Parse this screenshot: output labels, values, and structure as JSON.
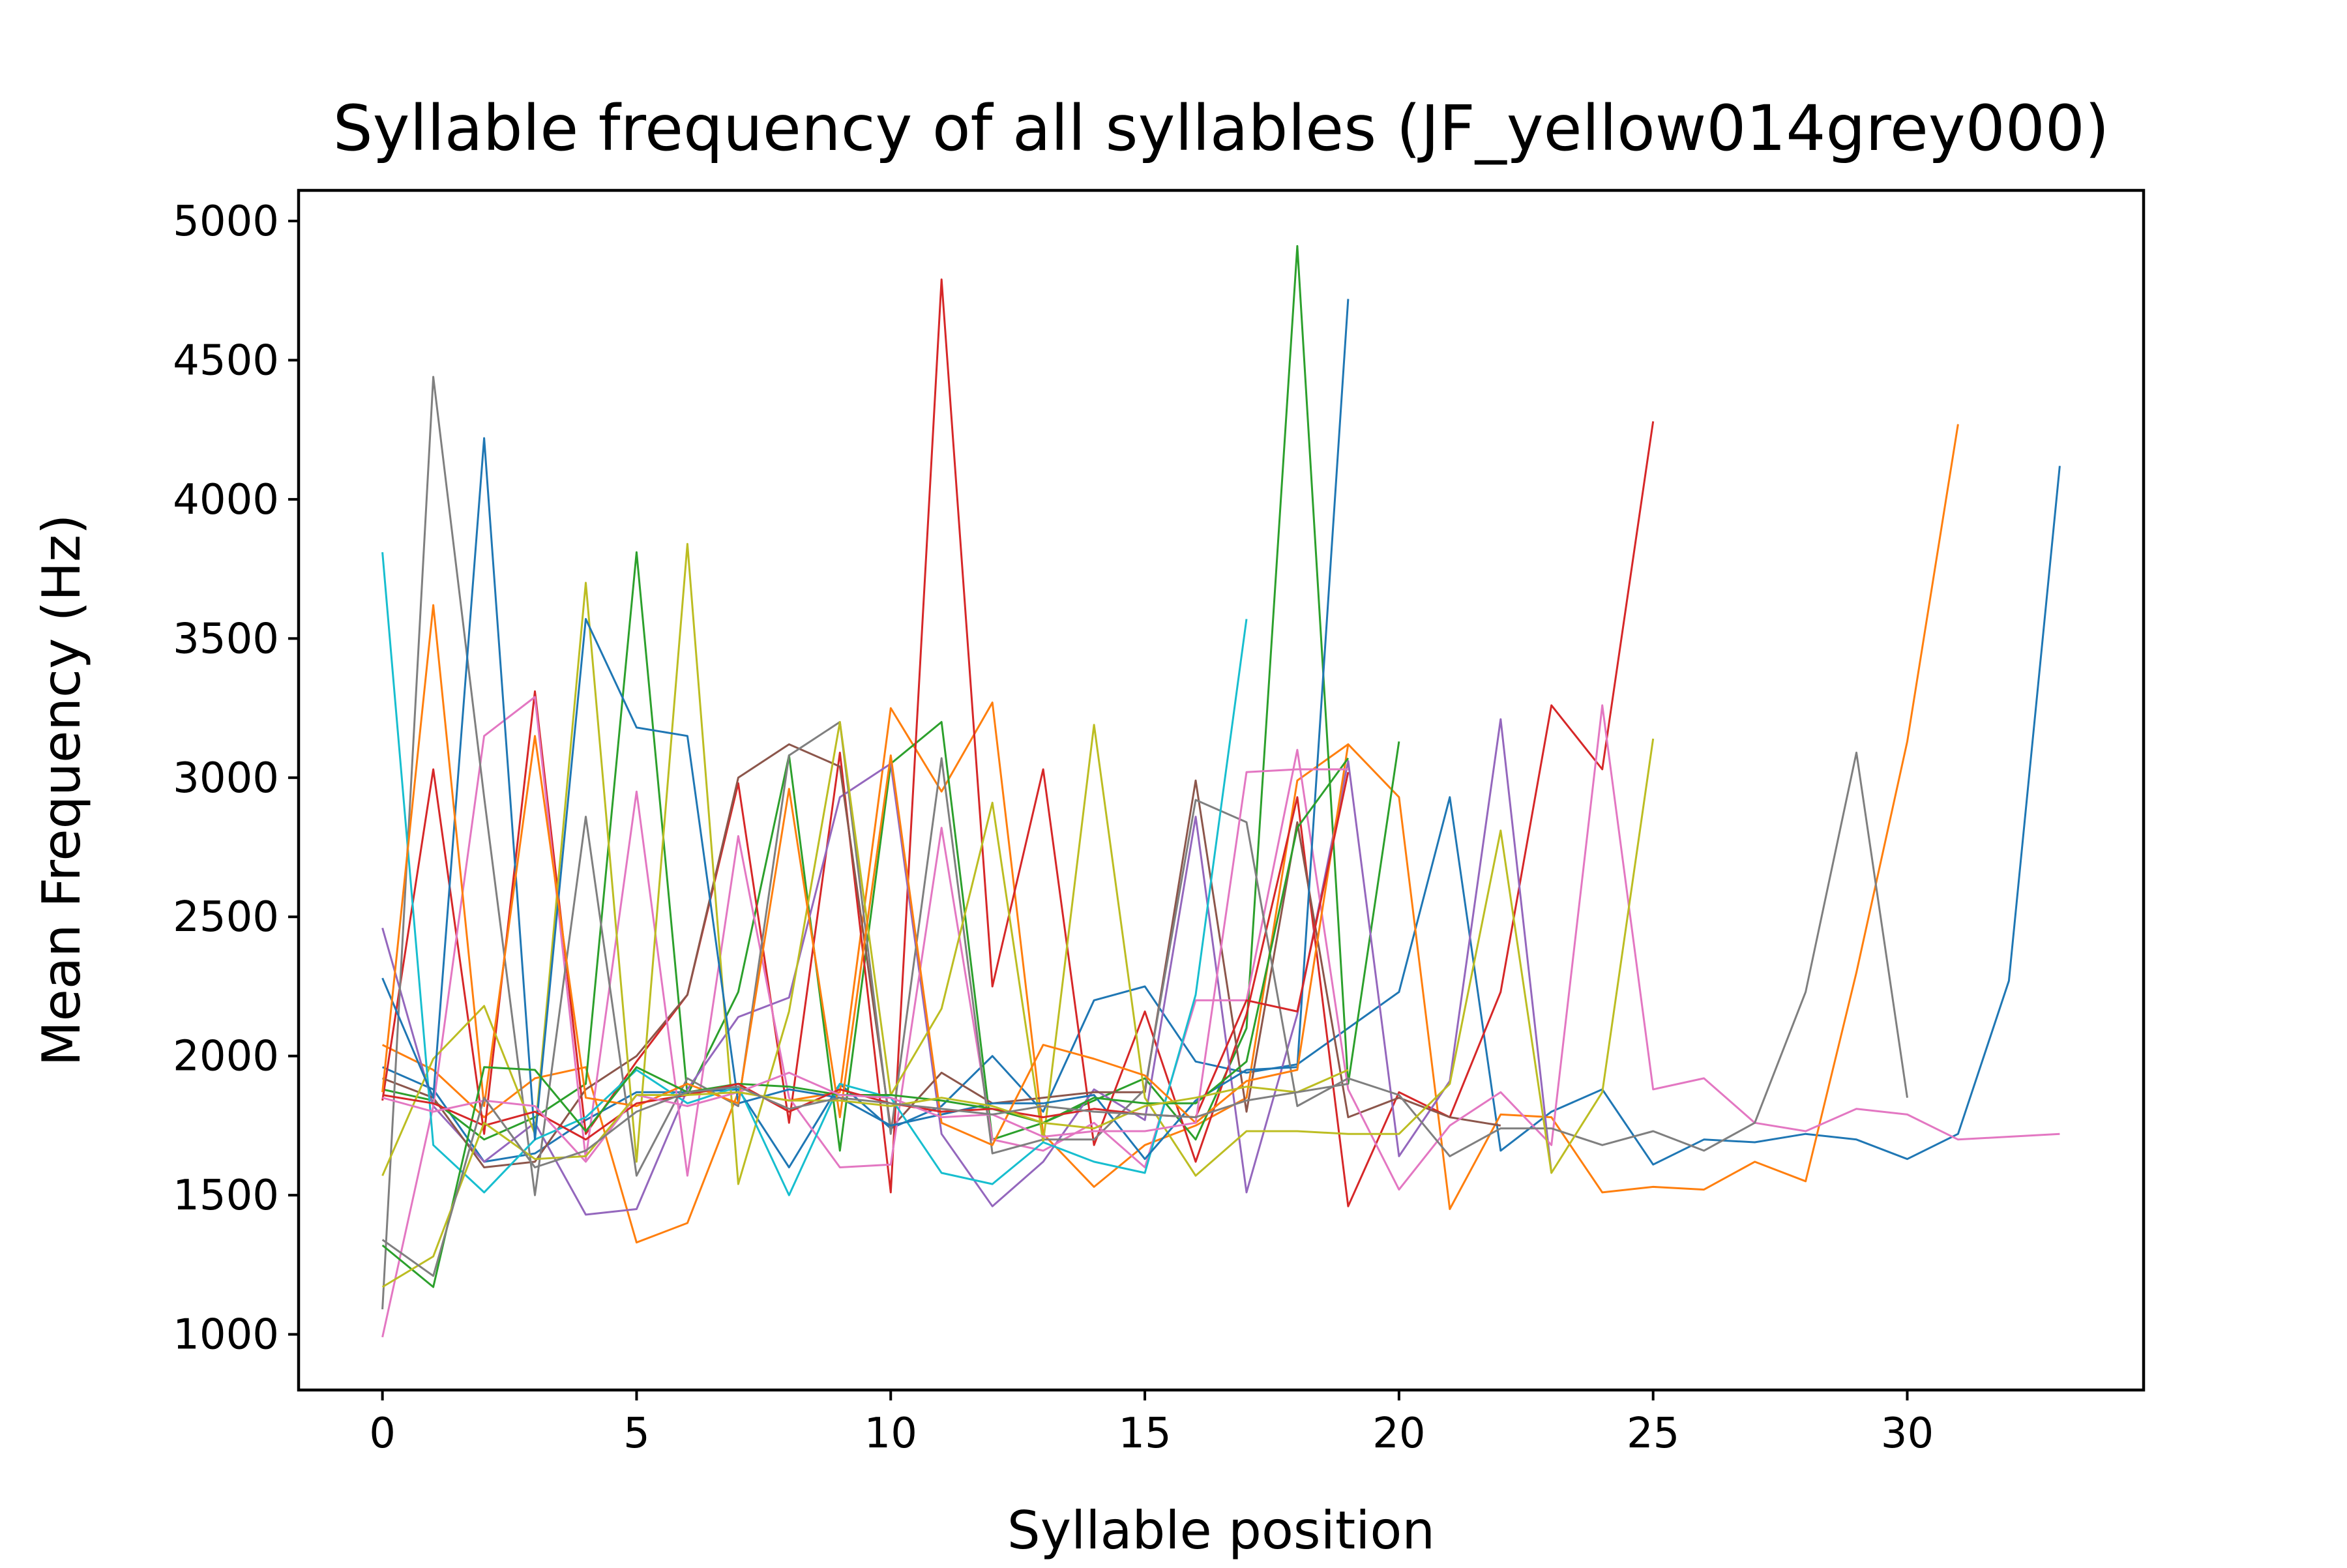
{
  "chart_data": {
    "type": "line",
    "title": "Syllable frequency of all syllables (JF_yellow014grey000)",
    "xlabel": "Syllable position",
    "ylabel": "Mean Frequency (Hz)",
    "xlim": [
      -1.65,
      34.65
    ],
    "ylim": [
      800,
      5110
    ],
    "xticks": [
      0,
      5,
      10,
      15,
      20,
      25,
      30
    ],
    "yticks": [
      1000,
      1500,
      2000,
      2500,
      3000,
      3500,
      4000,
      4500,
      5000
    ],
    "grid": false,
    "legend": "none",
    "series": [
      {
        "color": "#1f77b4",
        "values": [
          1960,
          1880,
          1620,
          1650,
          1770,
          1870,
          1870,
          1880,
          1600,
          1900,
          1740,
          1820,
          2000,
          1800,
          2200,
          2250,
          1980,
          1940,
          1970,
          2100,
          2230,
          2930,
          1660,
          1800,
          1880,
          1610,
          1700,
          1690,
          1720,
          1700,
          1630,
          1720,
          2270,
          4120
        ]
      },
      {
        "color": "#ff7f0e",
        "values": [
          2040,
          1950,
          1780,
          1920,
          1960,
          1330,
          1400,
          1870,
          1840,
          1870,
          3250,
          2950,
          3270,
          1720,
          1530,
          1680,
          1750,
          1850,
          2990,
          3120,
          2930,
          1450,
          1790,
          1780,
          1510,
          1530,
          1520,
          1620,
          1550,
          2300,
          3130,
          4270
        ]
      },
      {
        "color": "#2ca02c",
        "values": [
          1880,
          1840,
          1700,
          1780,
          1900,
          3810,
          1860,
          2230,
          3080,
          1660,
          3050,
          3200,
          1700,
          1760,
          1840,
          1920,
          1700,
          2100,
          4910,
          1900,
          3130
        ]
      },
      {
        "color": "#d62728",
        "values": [
          1840,
          3030,
          1720,
          3310,
          1720,
          1980,
          2220,
          2980,
          1760,
          3090,
          1510,
          4790,
          2250,
          3030,
          1680,
          2160,
          1620,
          2150,
          2930,
          1460,
          1870,
          1780,
          2230,
          3260,
          3030,
          4280
        ]
      },
      {
        "color": "#9467bd",
        "values": [
          2460,
          1820,
          1620,
          1760,
          1430,
          1450,
          1880,
          2140,
          2210,
          2930,
          3050,
          1720,
          1460,
          1620,
          1880,
          1770,
          2860,
          1510,
          2150,
          3060,
          1640,
          1910,
          3210,
          1580
        ]
      },
      {
        "color": "#8c564b",
        "values": [
          1920,
          1850,
          1600,
          1620,
          1880,
          2000,
          2220,
          3000,
          3120,
          3040,
          1740,
          1940,
          1830,
          1850,
          1870,
          1870,
          2990,
          1800,
          2840,
          1780,
          1850,
          1780,
          1750
        ]
      },
      {
        "color": "#e377c2",
        "values": [
          990,
          1820,
          3150,
          3290,
          1630,
          2950,
          1570,
          2790,
          1850,
          1600,
          1610,
          2820,
          1700,
          1660,
          1760,
          1600,
          2200,
          2200,
          3100,
          1880,
          1520,
          1750,
          1870,
          1680,
          3260,
          1880,
          1920,
          1760,
          1730,
          1810,
          1790,
          1700,
          1710,
          1720
        ]
      },
      {
        "color": "#7f7f7f",
        "values": [
          1090,
          4440,
          2930,
          1500,
          2860,
          1570,
          1920,
          1820,
          3080,
          3200,
          1720,
          3070,
          1650,
          1700,
          1700,
          1880,
          2920,
          2840,
          1820,
          1920,
          1860,
          1640,
          1740,
          1740,
          1680,
          1730,
          1660,
          1760,
          2230,
          3090,
          1850
        ]
      },
      {
        "color": "#bcbd22",
        "values": [
          1570,
          1990,
          2180,
          1720,
          3700,
          1620,
          3840,
          1540,
          2160,
          3200,
          1860,
          2170,
          2910,
          1690,
          3190,
          1850,
          1570,
          1730,
          1730,
          1720,
          1720,
          1900,
          2810,
          1580,
          1870,
          3140
        ]
      },
      {
        "color": "#17becf",
        "values": [
          3810,
          1680,
          1510,
          1700,
          1780,
          1950,
          1830,
          1890,
          1500,
          1900,
          1850,
          1580,
          1540,
          1690,
          1620,
          1580,
          2220,
          3570
        ]
      },
      {
        "color": "#1f77b4",
        "values": [
          2280,
          1850,
          4220,
          1700,
          3570,
          3180,
          3150,
          1830,
          1880,
          1850,
          1750,
          1790,
          1830,
          1830,
          1860,
          1630,
          1840,
          1950,
          1960,
          4720
        ]
      },
      {
        "color": "#ff7f0e",
        "values": [
          1870,
          3620,
          1820,
          3150,
          1850,
          1820,
          1900,
          1830,
          2960,
          1780,
          3080,
          1760,
          1680,
          2040,
          1990,
          1930,
          1760,
          1910,
          1950,
          3120
        ]
      },
      {
        "color": "#2ca02c",
        "values": [
          1320,
          1170,
          1960,
          1950,
          1730,
          1960,
          1870,
          1900,
          1890,
          1860,
          1860,
          1840,
          1810,
          1760,
          1850,
          1830,
          1830,
          1980,
          2820,
          3070
        ]
      },
      {
        "color": "#d62728",
        "values": [
          1860,
          1830,
          1750,
          1800,
          1700,
          1830,
          1860,
          1900,
          1800,
          1880,
          1830,
          1800,
          1810,
          1780,
          1810,
          1790,
          1780,
          2200,
          2160,
          3020
        ]
      },
      {
        "color": "#e377c2",
        "values": [
          1850,
          1800,
          1840,
          1820,
          1620,
          1860,
          1820,
          1870,
          1940,
          1860,
          1850,
          1780,
          1790,
          1710,
          1730,
          1730,
          1760,
          3020,
          3030,
          3030
        ]
      },
      {
        "color": "#bcbd22",
        "values": [
          1170,
          1280,
          1760,
          1630,
          1640,
          1860,
          1860,
          1870,
          1840,
          1840,
          1820,
          1850,
          1820,
          1760,
          1740,
          1820,
          1850,
          1890,
          1870,
          1950
        ]
      },
      {
        "color": "#7f7f7f",
        "values": [
          1340,
          1210,
          1850,
          1600,
          1660,
          1800,
          1870,
          1890,
          1810,
          1850,
          1830,
          1810,
          1790,
          1820,
          1800,
          1790,
          1780,
          1840,
          1870,
          1900
        ]
      }
    ]
  }
}
